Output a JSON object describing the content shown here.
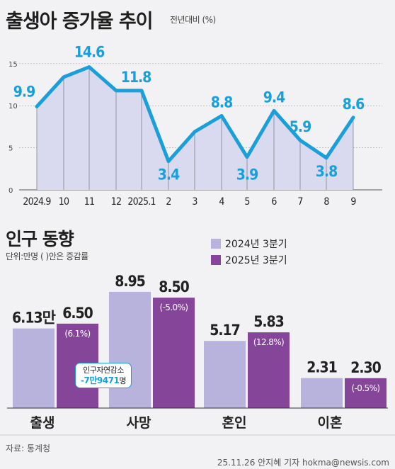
{
  "header": {
    "title": "출생아 증가율 추이",
    "subtitle": "전년대비 (%)"
  },
  "section2": {
    "title": "인구 동향",
    "unit_note": "단위:만명 ( )안은 증감률"
  },
  "callout": {
    "line1": "인구자연감소",
    "line2": "-7만9471",
    "line2_unit": "명"
  },
  "footer": {
    "source": "자료: 통계청",
    "credit": "25.11.26 안지혜 기자 hokma@newsis.com"
  },
  "colors": {
    "line": "#1a9fd8",
    "area": "#d9daf0",
    "bar_2024": "#b7b3dc",
    "bar_2025": "#85469a"
  },
  "chart_data": [
    {
      "type": "area",
      "x": [
        "2024.9",
        "10",
        "11",
        "12",
        "2025.1",
        "2",
        "3",
        "4",
        "5",
        "6",
        "7",
        "8",
        "9"
      ],
      "values": [
        9.9,
        13.4,
        14.6,
        11.8,
        11.8,
        3.4,
        6.9,
        8.8,
        3.9,
        9.4,
        5.9,
        3.8,
        8.6
      ],
      "point_labels": [
        "9.9",
        "",
        "14.6",
        "",
        "11.8",
        "3.4",
        "",
        "8.8",
        "3.9",
        "9.4",
        "5.9",
        "3.8",
        "8.6"
      ],
      "y_ticks": [
        "0",
        "5",
        "10",
        "15"
      ],
      "ylim": [
        0,
        16.5
      ]
    },
    {
      "type": "bar",
      "categories": [
        "출생",
        "사망",
        "혼인",
        "이혼"
      ],
      "series": [
        {
          "name": "2024년 3분기",
          "values": [
            6.13,
            8.95,
            5.17,
            2.31
          ],
          "labels": [
            "6.13만",
            "8.95",
            "5.17",
            "2.31"
          ]
        },
        {
          "name": "2025년 3분기",
          "values": [
            6.5,
            8.5,
            5.83,
            2.3
          ],
          "labels": [
            "6.50",
            "8.50",
            "5.83",
            "2.30"
          ],
          "changes": [
            "(6.1%)",
            "(-5.0%)",
            "(12.8%)",
            "(-0.5%)"
          ]
        }
      ],
      "ylim": [
        0,
        9.6
      ]
    }
  ]
}
